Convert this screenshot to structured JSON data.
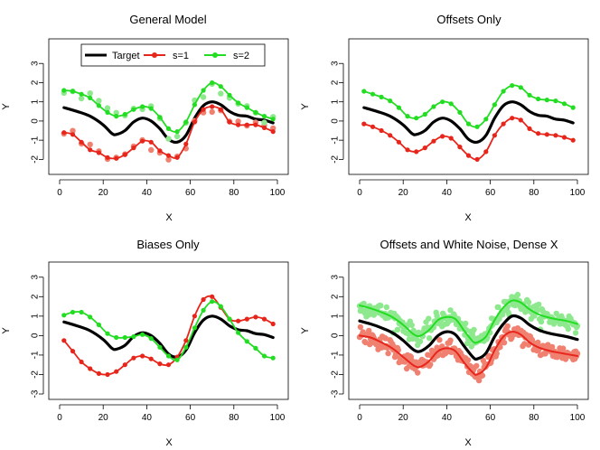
{
  "chart_data": [
    {
      "type": "line",
      "title": "General Model",
      "xlabel": "X",
      "ylabel": "Y",
      "xlim": [
        0,
        100
      ],
      "ylim": [
        -2.5,
        4
      ],
      "xticks": [
        "0",
        "20",
        "40",
        "60",
        "80",
        "100"
      ],
      "yticks": [
        "3",
        "2",
        "1",
        "0",
        "-1",
        "-2"
      ],
      "legend": {
        "position": "top",
        "labels": [
          "Target",
          "s=1",
          "s=2"
        ]
      },
      "series": [
        {
          "name": "Target",
          "color": "#000000",
          "x": [
            2,
            8,
            14,
            20,
            24,
            26,
            30,
            34,
            38,
            42,
            46,
            50,
            54,
            58,
            62,
            66,
            70,
            74,
            78,
            82,
            86,
            90,
            94,
            98
          ],
          "values": [
            0.7,
            0.5,
            0.25,
            -0.2,
            -0.65,
            -0.7,
            -0.5,
            -0.05,
            0.15,
            0.0,
            -0.4,
            -0.95,
            -1.1,
            -0.75,
            0.15,
            0.8,
            1.0,
            0.85,
            0.5,
            0.3,
            0.25,
            0.1,
            0.05,
            -0.1
          ]
        },
        {
          "name": "s=1",
          "color": "#e8251b",
          "x": [
            2,
            6,
            10,
            14,
            18,
            22,
            26,
            30,
            34,
            38,
            42,
            46,
            50,
            54,
            58,
            62,
            66,
            70,
            74,
            78,
            82,
            86,
            90,
            94,
            98
          ],
          "values": [
            -0.6,
            -0.7,
            -1.1,
            -1.5,
            -1.65,
            -1.9,
            -1.95,
            -1.75,
            -1.4,
            -1.05,
            -1.1,
            -1.55,
            -1.8,
            -1.9,
            -1.2,
            -0.05,
            0.6,
            0.75,
            0.6,
            -0.05,
            -0.2,
            -0.2,
            -0.2,
            -0.35,
            -0.55
          ]
        },
        {
          "name": "s=2",
          "color": "#22dd22",
          "x": [
            2,
            6,
            10,
            14,
            18,
            22,
            26,
            30,
            34,
            38,
            42,
            46,
            50,
            54,
            58,
            62,
            66,
            70,
            74,
            78,
            82,
            86,
            90,
            94,
            98
          ],
          "values": [
            1.6,
            1.55,
            1.4,
            1.2,
            0.8,
            0.45,
            0.25,
            0.35,
            0.6,
            0.75,
            0.65,
            0.2,
            -0.4,
            -0.55,
            -0.05,
            0.85,
            1.6,
            2.0,
            1.8,
            1.35,
            0.95,
            0.7,
            0.45,
            0.25,
            0.1
          ]
        }
      ]
    },
    {
      "type": "line",
      "title": "Offsets Only",
      "xlabel": "X",
      "ylabel": "Y",
      "xlim": [
        0,
        100
      ],
      "ylim": [
        -2.5,
        4
      ],
      "xticks": [
        "0",
        "20",
        "40",
        "60",
        "80",
        "100"
      ],
      "yticks": [
        "3",
        "2",
        "1",
        "0",
        "-1",
        "-2"
      ],
      "series": [
        {
          "name": "",
          "color": "#000000",
          "x": [
            2,
            8,
            14,
            20,
            24,
            26,
            30,
            34,
            38,
            42,
            46,
            50,
            54,
            58,
            62,
            66,
            70,
            74,
            78,
            82,
            86,
            90,
            94,
            98
          ],
          "values": [
            0.7,
            0.5,
            0.25,
            -0.2,
            -0.65,
            -0.7,
            -0.5,
            -0.05,
            0.15,
            0.0,
            -0.4,
            -0.95,
            -1.1,
            -0.75,
            0.15,
            0.8,
            1.0,
            0.85,
            0.5,
            0.3,
            0.25,
            0.1,
            0.05,
            -0.1
          ]
        },
        {
          "name": "",
          "color": "#e8251b",
          "x": [
            2,
            6,
            10,
            14,
            18,
            22,
            26,
            30,
            34,
            38,
            42,
            46,
            50,
            54,
            58,
            62,
            66,
            70,
            74,
            78,
            82,
            86,
            90,
            94,
            98
          ],
          "values": [
            -0.15,
            -0.3,
            -0.5,
            -0.75,
            -1.1,
            -1.5,
            -1.6,
            -1.4,
            -1.05,
            -0.8,
            -0.9,
            -1.35,
            -1.8,
            -2.0,
            -1.6,
            -0.75,
            -0.15,
            0.15,
            0.05,
            -0.4,
            -0.65,
            -0.7,
            -0.75,
            -0.85,
            -1.0
          ]
        },
        {
          "name": "",
          "color": "#22dd22",
          "x": [
            2,
            6,
            10,
            14,
            18,
            22,
            26,
            30,
            34,
            38,
            42,
            46,
            50,
            54,
            58,
            62,
            66,
            70,
            74,
            78,
            82,
            86,
            90,
            94,
            98
          ],
          "values": [
            1.55,
            1.4,
            1.25,
            1.05,
            0.7,
            0.25,
            0.15,
            0.35,
            0.75,
            1.0,
            0.9,
            0.45,
            -0.15,
            -0.3,
            0.1,
            0.85,
            1.55,
            1.85,
            1.75,
            1.35,
            1.15,
            1.1,
            1.05,
            0.9,
            0.7
          ]
        }
      ]
    },
    {
      "type": "line",
      "title": "Biases Only",
      "xlabel": "X",
      "ylabel": "Y",
      "xlim": [
        0,
        100
      ],
      "ylim": [
        -3,
        3.5
      ],
      "xticks": [
        "0",
        "20",
        "40",
        "60",
        "80",
        "100"
      ],
      "yticks": [
        "3",
        "2",
        "1",
        "0",
        "-1",
        "-2",
        "-3"
      ],
      "series": [
        {
          "name": "",
          "color": "#000000",
          "x": [
            2,
            8,
            14,
            20,
            24,
            26,
            30,
            34,
            38,
            42,
            46,
            50,
            54,
            58,
            62,
            66,
            70,
            74,
            78,
            82,
            86,
            90,
            94,
            98
          ],
          "values": [
            0.7,
            0.5,
            0.25,
            -0.2,
            -0.65,
            -0.7,
            -0.5,
            -0.05,
            0.15,
            0.0,
            -0.4,
            -0.95,
            -1.1,
            -0.75,
            0.15,
            0.8,
            1.0,
            0.85,
            0.5,
            0.3,
            0.25,
            0.1,
            0.05,
            -0.1
          ]
        },
        {
          "name": "",
          "color": "#e8251b",
          "x": [
            2,
            6,
            10,
            14,
            18,
            22,
            26,
            30,
            34,
            38,
            42,
            46,
            50,
            54,
            58,
            62,
            66,
            70,
            74,
            78,
            82,
            86,
            90,
            94,
            98
          ],
          "values": [
            -0.25,
            -0.8,
            -1.35,
            -1.7,
            -1.95,
            -2.0,
            -1.85,
            -1.5,
            -1.15,
            -1.05,
            -1.2,
            -1.45,
            -1.5,
            -1.1,
            -0.25,
            1.0,
            1.85,
            2.0,
            1.45,
            0.85,
            0.75,
            0.85,
            0.95,
            0.85,
            0.6
          ]
        },
        {
          "name": "",
          "color": "#22dd22",
          "x": [
            2,
            6,
            10,
            14,
            18,
            22,
            26,
            30,
            34,
            38,
            42,
            46,
            50,
            54,
            58,
            62,
            66,
            70,
            74,
            78,
            82,
            86,
            90,
            94,
            98
          ],
          "values": [
            1.05,
            1.2,
            1.2,
            0.95,
            0.55,
            0.1,
            -0.1,
            -0.1,
            -0.05,
            0.05,
            -0.15,
            -0.6,
            -1.05,
            -1.25,
            -0.6,
            0.4,
            1.3,
            1.75,
            1.5,
            0.85,
            0.15,
            -0.3,
            -0.65,
            -1.05,
            -1.15
          ]
        }
      ]
    },
    {
      "type": "line",
      "title": "Offsets and White Noise, Dense X",
      "xlabel": "X",
      "ylabel": "Y",
      "xlim": [
        0,
        100
      ],
      "ylim": [
        -3,
        3.5
      ],
      "xticks": [
        "0",
        "20",
        "40",
        "60",
        "80",
        "100"
      ],
      "yticks": [
        "3",
        "2",
        "1",
        "0",
        "-1",
        "-2",
        "-3"
      ],
      "series": [
        {
          "name": "",
          "color": "#000000",
          "x": [
            0,
            5,
            10,
            15,
            20,
            25,
            28,
            32,
            36,
            40,
            44,
            48,
            52,
            54,
            58,
            62,
            66,
            70,
            74,
            78,
            82,
            86,
            90,
            95,
            100
          ],
          "values": [
            0.75,
            0.6,
            0.4,
            0.15,
            -0.25,
            -0.75,
            -0.8,
            -0.5,
            0.0,
            0.2,
            0.05,
            -0.55,
            -1.1,
            -1.2,
            -0.9,
            -0.05,
            0.6,
            1.0,
            0.9,
            0.55,
            0.3,
            0.15,
            0.05,
            -0.05,
            -0.2
          ]
        },
        {
          "name": "",
          "color": "#e8251b",
          "x": [
            0,
            5,
            10,
            15,
            20,
            25,
            28,
            32,
            36,
            40,
            44,
            48,
            52,
            54,
            58,
            62,
            66,
            70,
            74,
            78,
            82,
            86,
            90,
            95,
            100
          ],
          "values": [
            0.0,
            -0.1,
            -0.35,
            -0.65,
            -1.1,
            -1.55,
            -1.6,
            -1.3,
            -0.8,
            -0.65,
            -0.8,
            -1.4,
            -1.9,
            -2.0,
            -1.65,
            -0.75,
            -0.05,
            0.2,
            0.05,
            -0.35,
            -0.6,
            -0.75,
            -0.85,
            -0.95,
            -1.05
          ]
        },
        {
          "name": "",
          "color": "#22dd22",
          "x": [
            0,
            5,
            10,
            15,
            20,
            25,
            28,
            32,
            36,
            40,
            44,
            48,
            52,
            54,
            58,
            62,
            66,
            70,
            74,
            78,
            82,
            86,
            90,
            95,
            100
          ],
          "values": [
            1.55,
            1.4,
            1.2,
            0.95,
            0.55,
            0.05,
            0.0,
            0.3,
            0.8,
            0.95,
            0.85,
            0.25,
            -0.3,
            -0.35,
            -0.05,
            0.8,
            1.45,
            1.8,
            1.7,
            1.35,
            1.1,
            0.95,
            0.85,
            0.75,
            0.6
          ]
        }
      ]
    }
  ]
}
